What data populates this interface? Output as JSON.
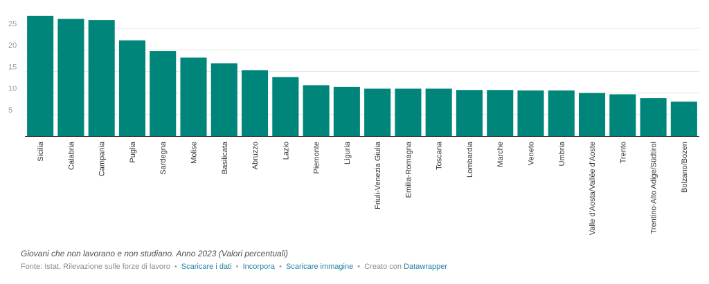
{
  "chart_data": {
    "type": "bar",
    "categories": [
      "Sicilia",
      "Calabria",
      "Campania",
      "Puglia",
      "Sardegna",
      "Molise",
      "Basilicata",
      "Abruzzo",
      "Lazio",
      "Piemonte",
      "Liguria",
      "Friuli-Venezia Giulia",
      "Emilia-Romagna",
      "Toscana",
      "Lombardia",
      "Marche",
      "Veneto",
      "Umbria",
      "Valle d'Aosta/Vallée d'Aoste",
      "Trento",
      "Trentino-Alto Adige/Südtirol",
      "Bolzano/Bozen"
    ],
    "values": [
      27.9,
      27.2,
      26.9,
      22.2,
      19.7,
      18.2,
      16.9,
      15.3,
      13.7,
      11.8,
      11.4,
      11.0,
      11.0,
      11.0,
      10.7,
      10.7,
      10.6,
      10.6,
      10.0,
      9.7,
      8.8,
      8.0
    ],
    "yticks": [
      5,
      10,
      15,
      20,
      25
    ],
    "ylim": [
      0,
      29
    ],
    "grid": true,
    "color": "#00857a"
  },
  "caption": "Giovani che non lavorano e non studiano. Anno 2023 (Valori percentuali)",
  "footer": {
    "source": "Fonte: Istat, Rilevazione sulle forze di lavoro",
    "links": {
      "download_data": "Scaricare i dati",
      "embed": "Incorpora",
      "download_image": "Scaricare immagine"
    },
    "created_with": "Creato con",
    "tool": "Datawrapper",
    "separator": "•"
  },
  "colors": {
    "bar": "#00857a",
    "link": "#1d81a2",
    "grid": "#e6e6e6",
    "axis_text": "#9a9a9a"
  }
}
